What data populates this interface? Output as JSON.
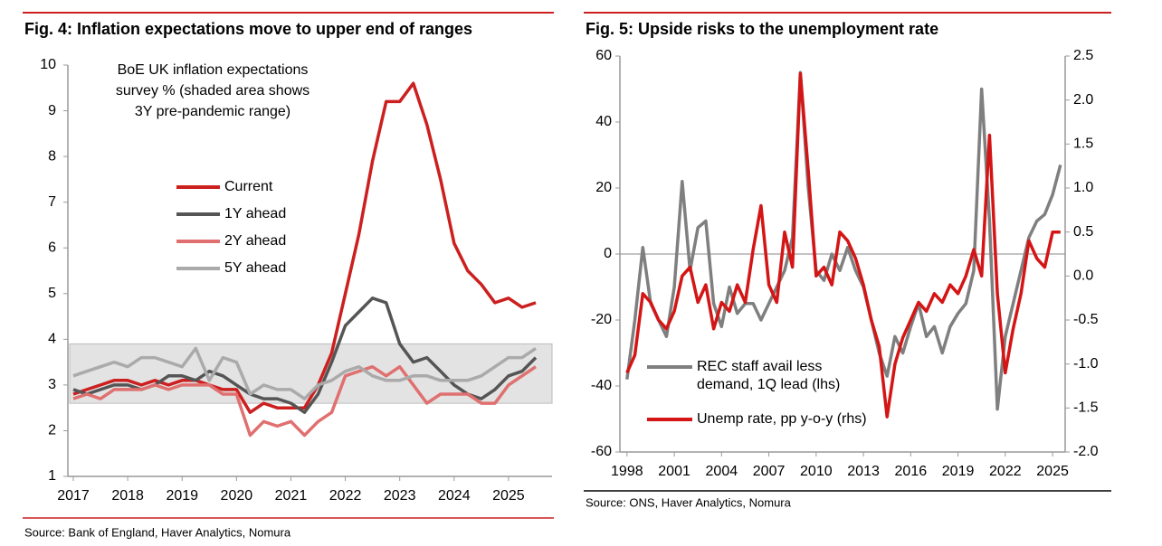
{
  "chart_data": [
    {
      "type": "line",
      "title": "Fig. 4: Inflation expectations move to upper end of ranges",
      "annotation": [
        "BoE UK inflation expectations",
        "survey % (shaded area shows",
        "3Y pre-pandemic range)"
      ],
      "source": "Source: Bank of England, Haver Analytics, Nomura",
      "x": [
        2017,
        2017.25,
        2017.5,
        2017.75,
        2018,
        2018.25,
        2018.5,
        2018.75,
        2019,
        2019.25,
        2019.5,
        2019.75,
        2020,
        2020.25,
        2020.5,
        2020.75,
        2021,
        2021.25,
        2021.5,
        2021.75,
        2022,
        2022.25,
        2022.5,
        2022.75,
        2023,
        2023.25,
        2023.5,
        2023.75,
        2024,
        2024.25,
        2024.5,
        2024.75,
        2025,
        2025.25,
        2025.5
      ],
      "series": [
        {
          "name": "Current",
          "color": "#cc1f1f",
          "values": [
            2.8,
            2.9,
            3.0,
            3.1,
            3.1,
            3.0,
            3.1,
            3.0,
            3.1,
            3.1,
            3.0,
            2.9,
            2.9,
            2.4,
            2.6,
            2.5,
            2.5,
            2.5,
            3.0,
            3.7,
            5.0,
            6.3,
            7.9,
            9.2,
            9.2,
            9.6,
            8.7,
            7.5,
            6.1,
            5.5,
            5.2,
            4.8,
            4.9,
            4.7,
            4.8
          ]
        },
        {
          "name": "1Y ahead",
          "color": "#555555",
          "values": [
            2.9,
            2.8,
            2.9,
            3.0,
            3.0,
            2.9,
            3.0,
            3.2,
            3.2,
            3.1,
            3.3,
            3.2,
            3.0,
            2.8,
            2.7,
            2.7,
            2.6,
            2.4,
            2.8,
            3.5,
            4.3,
            4.6,
            4.9,
            4.8,
            3.9,
            3.5,
            3.6,
            3.3,
            3.0,
            2.8,
            2.7,
            2.9,
            3.2,
            3.3,
            3.6
          ]
        },
        {
          "name": "2Y ahead",
          "color": "#e07070",
          "values": [
            2.7,
            2.8,
            2.7,
            2.9,
            2.9,
            2.9,
            3.0,
            2.9,
            3.0,
            3.0,
            3.0,
            2.8,
            2.8,
            1.9,
            2.2,
            2.1,
            2.2,
            1.9,
            2.2,
            2.4,
            3.2,
            3.3,
            3.4,
            3.2,
            3.4,
            3.0,
            2.6,
            2.8,
            2.8,
            2.8,
            2.6,
            2.6,
            3.0,
            3.2,
            3.4
          ]
        },
        {
          "name": "5Y ahead",
          "color": "#aaaaaa",
          "values": [
            3.2,
            3.3,
            3.4,
            3.5,
            3.4,
            3.6,
            3.6,
            3.5,
            3.4,
            3.8,
            3.1,
            3.6,
            3.5,
            2.8,
            3.0,
            2.9,
            2.9,
            2.7,
            3.0,
            3.1,
            3.3,
            3.4,
            3.2,
            3.1,
            3.1,
            3.2,
            3.2,
            3.1,
            3.1,
            3.1,
            3.2,
            3.4,
            3.6,
            3.6,
            3.8
          ]
        }
      ],
      "shaded_range": [
        2.6,
        3.9
      ],
      "xlim": [
        2016.9,
        2025.8
      ],
      "xticks": [
        2017,
        2018,
        2019,
        2020,
        2021,
        2022,
        2023,
        2024,
        2025
      ],
      "ylim": [
        1,
        10
      ],
      "yticks": [
        1,
        2,
        3,
        4,
        5,
        6,
        7,
        8,
        9,
        10
      ]
    },
    {
      "type": "line",
      "title": "Fig. 5: Upside risks to the unemployment rate",
      "source": "Source: ONS, Haver Analytics, Nomura",
      "x": [
        1998,
        1998.5,
        1999,
        1999.5,
        2000,
        2000.5,
        2001,
        2001.5,
        2002,
        2002.5,
        2003,
        2003.5,
        2004,
        2004.5,
        2005,
        2005.5,
        2006,
        2006.5,
        2007,
        2007.5,
        2008,
        2008.5,
        2009,
        2009.5,
        2010,
        2010.5,
        2011,
        2011.5,
        2012,
        2012.5,
        2013,
        2013.5,
        2014,
        2014.5,
        2015,
        2015.5,
        2016,
        2016.5,
        2017,
        2017.5,
        2018,
        2018.5,
        2019,
        2019.5,
        2020,
        2020.5,
        2021,
        2021.5,
        2022,
        2022.5,
        2023,
        2023.5,
        2024,
        2024.5,
        2025,
        2025.5
      ],
      "series": [
        {
          "name": "REC staff avail less demand, 1Q lead (lhs)",
          "color": "#7f7f7f",
          "values": [
            -38,
            -20,
            2,
            -15,
            -20,
            -25,
            -10,
            22,
            -5,
            8,
            10,
            -15,
            -22,
            -10,
            -18,
            -15,
            -15,
            -20,
            -15,
            -10,
            -5,
            5,
            55,
            20,
            -5,
            -8,
            0,
            -5,
            2,
            -5,
            -10,
            -20,
            -30,
            -37,
            -25,
            -30,
            -22,
            -15,
            -25,
            -22,
            -30,
            -22,
            -18,
            -15,
            -5,
            50,
            10,
            -47,
            -25,
            -15,
            -5,
            5,
            10,
            12,
            18,
            27
          ]
        },
        {
          "name": "Unemp rate, pp y-o-y (rhs)",
          "color": "#d41515",
          "axis": "y2",
          "values": [
            -1.1,
            -0.9,
            -0.2,
            -0.3,
            -0.5,
            -0.6,
            -0.4,
            0.0,
            0.1,
            -0.3,
            -0.1,
            -0.6,
            -0.3,
            -0.4,
            -0.1,
            -0.3,
            0.3,
            0.8,
            -0.1,
            -0.3,
            0.5,
            0.1,
            2.3,
            1.2,
            0.0,
            0.1,
            -0.1,
            0.5,
            0.4,
            0.2,
            -0.1,
            -0.5,
            -0.8,
            -1.6,
            -1.0,
            -0.7,
            -0.5,
            -0.3,
            -0.4,
            -0.2,
            -0.3,
            -0.1,
            -0.2,
            0.0,
            0.3,
            0.0,
            1.6,
            -0.2,
            -1.1,
            -0.6,
            -0.2,
            0.4,
            0.2,
            0.1,
            0.5,
            0.5
          ]
        }
      ],
      "xlim": [
        1997.55,
        2025.8
      ],
      "xticks": [
        1998,
        2001,
        2004,
        2007,
        2010,
        2013,
        2016,
        2019,
        2022,
        2025
      ],
      "ylim": [
        -60,
        60
      ],
      "yticks": [
        -60,
        -40,
        -20,
        0,
        20,
        40,
        60
      ],
      "y2lim": [
        -2,
        2.5
      ],
      "y2ticks": [
        {
          "value": -2,
          "label": "-2.0"
        },
        -1.5,
        {
          "value": -1,
          "label": "-1.0"
        },
        -0.5,
        {
          "value": 0,
          "label": "0.0"
        },
        0.5,
        {
          "value": 1,
          "label": "1.0"
        },
        1.5,
        {
          "value": 2,
          "label": "2.0"
        },
        2.5
      ]
    }
  ]
}
